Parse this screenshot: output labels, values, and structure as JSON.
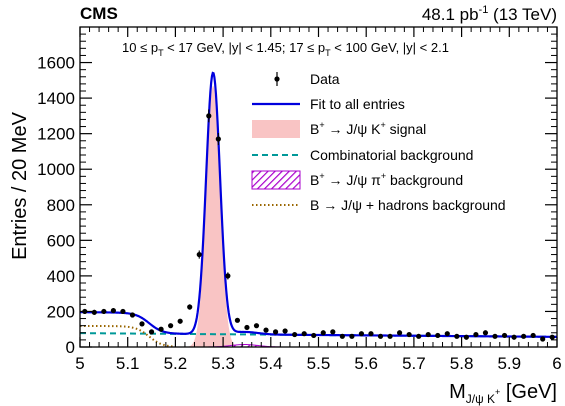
{
  "header": {
    "experiment": "CMS",
    "lumi_value": "48.1 pb",
    "lumi_exp": "-1",
    "lumi_energy": " (13 TeV)"
  },
  "selection": {
    "part1_a": "10 ≤ p",
    "part1_sub": "T",
    "part1_b": " < 17 GeV, |y| < 1.45; 17 ≤ p",
    "part2_sub": "T",
    "part2_b": " < 100 GeV, |y| < 2.1"
  },
  "axes": {
    "ylabel": "Entries / 20 MeV",
    "xlabel_main": "M",
    "xlabel_sub": "J/ψ K",
    "xlabel_sup": "+",
    "xlabel_unit": " [GeV]"
  },
  "legend": {
    "data": "Data",
    "fit": "Fit to all entries",
    "signal_pre": "B",
    "signal_sup1": "+",
    "signal_mid": " → J/ψ K",
    "signal_sup2": "+",
    "signal_post": " signal",
    "comb": "Combinatorial background",
    "pi_pre": "B",
    "pi_sup1": "+",
    "pi_mid": " → J/ψ π",
    "pi_sup2": "+",
    "pi_post": " background",
    "hadrons": "B → J/ψ + hadrons background"
  },
  "colors": {
    "fit": "#0000dd",
    "signal_fill": "#f9c4c4",
    "combinatorial": "#009999",
    "pion": "#aa00cc",
    "hadrons": "#996600"
  },
  "chart_data": {
    "type": "scatter",
    "xlim": [
      5.0,
      6.0
    ],
    "ylim": [
      0,
      1800
    ],
    "xticks": [
      5.0,
      5.1,
      5.2,
      5.3,
      5.4,
      5.5,
      5.6,
      5.7,
      5.8,
      5.9,
      6.0
    ],
    "xtick_labels": [
      "5",
      "5.1",
      "5.2",
      "5.3",
      "5.4",
      "5.5",
      "5.6",
      "5.7",
      "5.8",
      "5.9",
      "6"
    ],
    "yticks": [
      0,
      200,
      400,
      600,
      800,
      1000,
      1200,
      1400,
      1600
    ],
    "ytick_labels": [
      "0",
      "200",
      "400",
      "600",
      "800",
      "1000",
      "1200",
      "1400",
      "1600"
    ],
    "grid": false,
    "legend_position": "top-right",
    "data_points": {
      "x": [
        5.01,
        5.03,
        5.05,
        5.07,
        5.09,
        5.11,
        5.13,
        5.15,
        5.17,
        5.19,
        5.21,
        5.23,
        5.25,
        5.27,
        5.29,
        5.31,
        5.33,
        5.35,
        5.37,
        5.39,
        5.41,
        5.43,
        5.45,
        5.47,
        5.49,
        5.51,
        5.53,
        5.55,
        5.57,
        5.59,
        5.61,
        5.63,
        5.65,
        5.67,
        5.69,
        5.71,
        5.73,
        5.75,
        5.77,
        5.79,
        5.81,
        5.83,
        5.85,
        5.87,
        5.89,
        5.91,
        5.93,
        5.95,
        5.97,
        5.99
      ],
      "y": [
        200,
        195,
        200,
        205,
        200,
        180,
        130,
        85,
        100,
        120,
        145,
        225,
        520,
        1300,
        1170,
        400,
        150,
        110,
        120,
        95,
        85,
        90,
        70,
        75,
        65,
        80,
        85,
        60,
        60,
        75,
        75,
        60,
        60,
        80,
        70,
        60,
        70,
        65,
        75,
        60,
        55,
        70,
        80,
        60,
        65,
        55,
        60,
        65,
        45,
        55
      ],
      "yerr": [
        14,
        14,
        14,
        14,
        14,
        13,
        11,
        9,
        10,
        11,
        12,
        15,
        23,
        36,
        34,
        20,
        12,
        10,
        11,
        10,
        9,
        9,
        8,
        9,
        8,
        9,
        9,
        8,
        8,
        9,
        9,
        8,
        8,
        9,
        8,
        8,
        8,
        8,
        9,
        8,
        7,
        8,
        9,
        8,
        8,
        7,
        8,
        8,
        7,
        7
      ]
    },
    "model": {
      "signal_mean": 5.279,
      "signal_sigma": 0.0145,
      "signal_peak": 1470,
      "comb_a": 78,
      "comb_b": 57,
      "hadrons_level": 118,
      "hadrons_edge": 5.145,
      "hadrons_width": 0.014,
      "pion_mean": 5.345,
      "pion_sigma": 0.028,
      "pion_peak": 14
    },
    "series": [
      {
        "name": "Data",
        "kind": "points"
      },
      {
        "name": "Fit to all entries",
        "kind": "line"
      },
      {
        "name": "B+ → J/ψ K+ signal",
        "kind": "area"
      },
      {
        "name": "Combinatorial background",
        "kind": "dashed"
      },
      {
        "name": "B+ → J/ψ π+ background",
        "kind": "hatched"
      },
      {
        "name": "B → J/ψ + hadrons background",
        "kind": "dotted"
      }
    ]
  }
}
